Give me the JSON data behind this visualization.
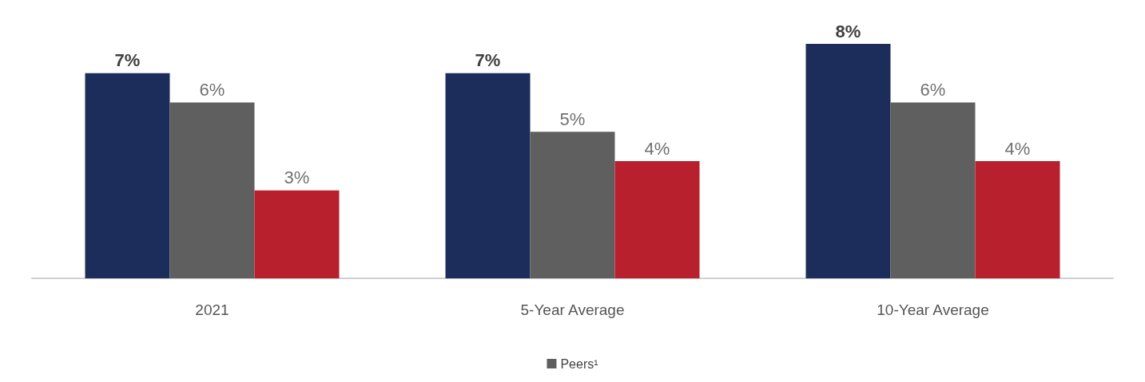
{
  "chart_data": {
    "type": "bar",
    "categories": [
      "2021",
      "5-Year Average",
      "10-Year Average"
    ],
    "series": [
      {
        "color": "#1c2d5c",
        "values": [
          7,
          7,
          8
        ],
        "value_labels": [
          "7%",
          "7%",
          "8%"
        ]
      },
      {
        "name": "Peers¹",
        "color": "#5f5f5f",
        "values": [
          6,
          5,
          6
        ],
        "value_labels": [
          "6%",
          "5%",
          "6%"
        ]
      },
      {
        "color": "#b8202e",
        "values": [
          3,
          4,
          4
        ],
        "value_labels": [
          "3%",
          "4%",
          "4%"
        ]
      }
    ],
    "legend": "bottom"
  }
}
